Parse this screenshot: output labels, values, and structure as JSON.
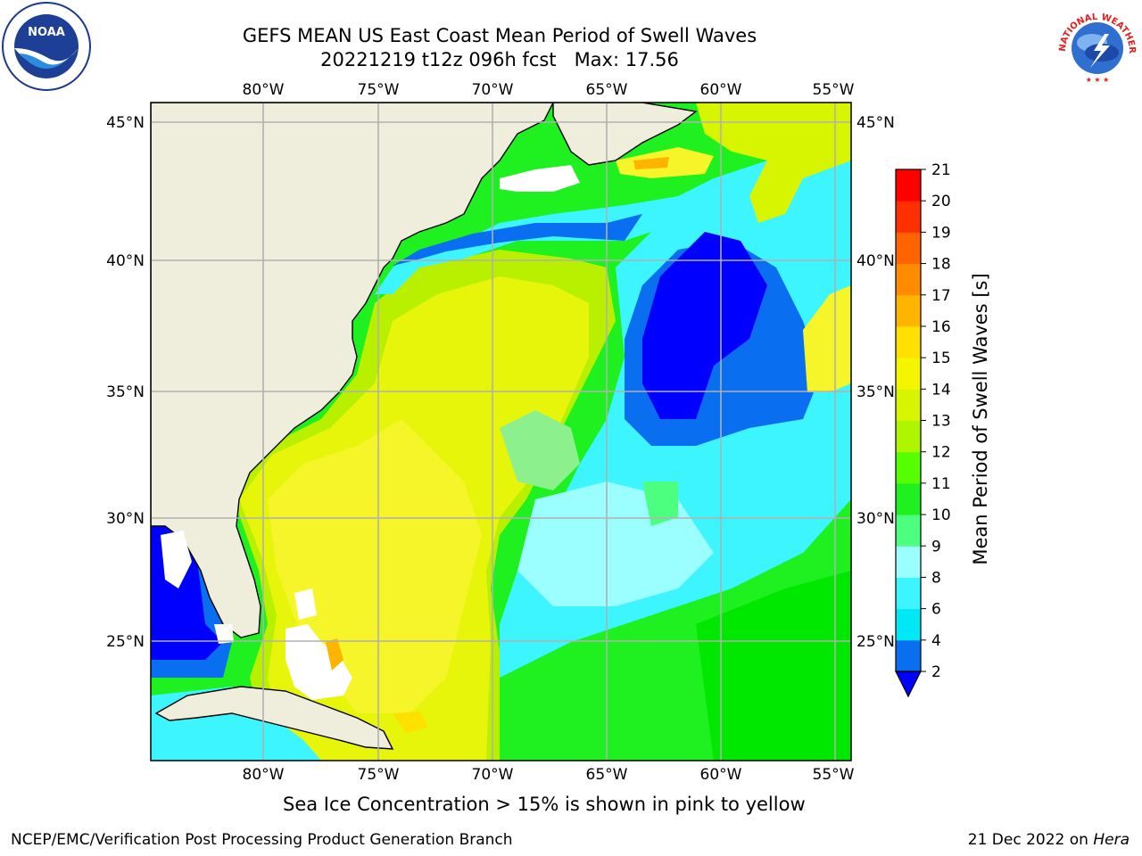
{
  "title": {
    "line1": "GEFS MEAN US East Coast Mean Period of Swell Waves",
    "line2": "20221219 t12z 096h fcst   Max: 17.56"
  },
  "logos": {
    "left": {
      "icon": "noaa-logo",
      "text": "NOAA"
    },
    "right": {
      "icon": "national-weather-service-logo",
      "ring_text": "NATIONAL WEATHER SERVICE"
    }
  },
  "map": {
    "lon_ticks": [
      "80°W",
      "75°W",
      "70°W",
      "65°W",
      "60°W",
      "55°W"
    ],
    "lat_ticks": [
      "45°N",
      "40°N",
      "35°N",
      "30°N",
      "25°N"
    ],
    "land_color": "#efeedd",
    "grid_color": "#b0b0b0"
  },
  "colorbar": {
    "label": "Mean Period of Swell Waves [s]",
    "levels": [
      2,
      4,
      6,
      8,
      9,
      10,
      11,
      12,
      13,
      14,
      15,
      16,
      17,
      18,
      19,
      20,
      21
    ],
    "colors": [
      "#0000ff",
      "#0a6ef0",
      "#00e8f5",
      "#3cf5ff",
      "#9bffff",
      "#4dff7f",
      "#1ff01f",
      "#55ff00",
      "#b0f500",
      "#d8f500",
      "#f5f500",
      "#ffe000",
      "#ffb400",
      "#ff8c00",
      "#ff6400",
      "#ff3000",
      "#ff0000"
    ],
    "extend_min_color": "#0000ff"
  },
  "caption": "Sea Ice Concentration > 15% is shown in pink to yellow",
  "footer": {
    "left": "NCEP/EMC/Verification Post Processing Product Generation Branch",
    "right_prefix": "21 Dec 2022 on ",
    "right_em": "Hera"
  }
}
